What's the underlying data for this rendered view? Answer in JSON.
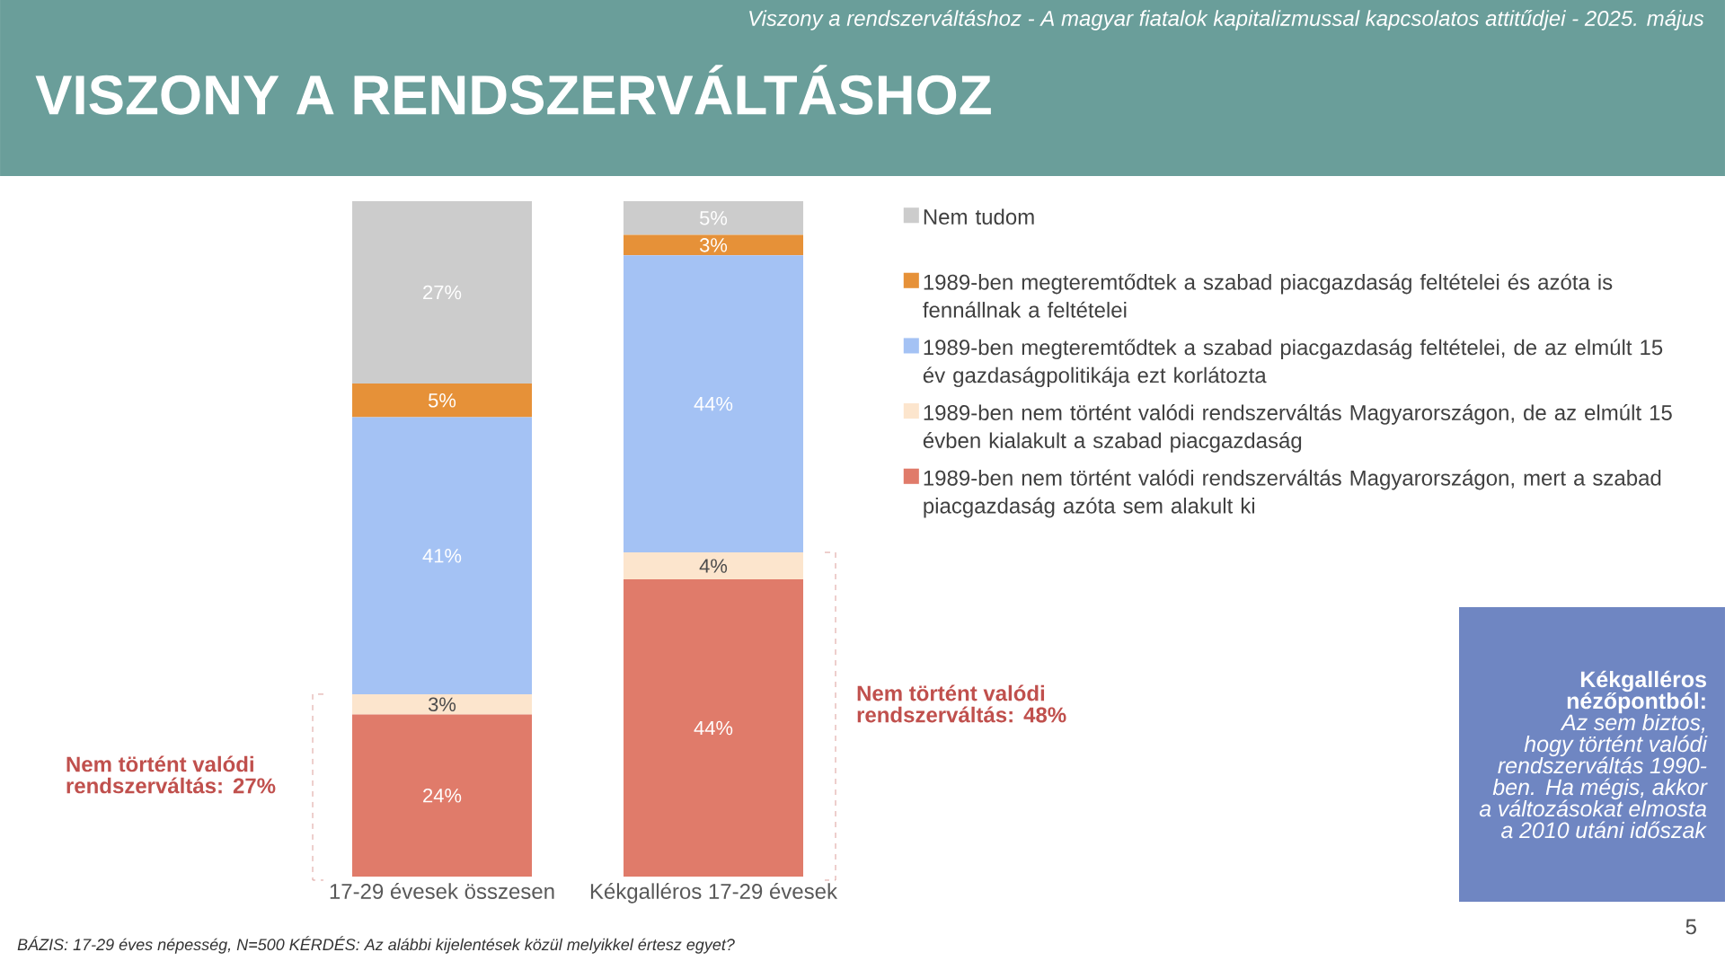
{
  "chart_data": {
    "type": "bar",
    "stacked": true,
    "title": "VISZONY A RENDSZERVÁLTÁSHOZ",
    "subtitle": "Viszony a rendszerváltáshoz - A magyar fiatalok kapitalizmussal kapcsolatos attitűdjei - 2025. május",
    "categories": [
      "17-29 évesek összesen",
      "Kékgalléros 17-29 évesek"
    ],
    "series": [
      {
        "name": "1989-ben nem történt valódi rendszerváltás Magyarországon, mert a szabad piacgazdaság azóta sem alakult ki",
        "color": "#e07b6a",
        "values": [
          24,
          44
        ],
        "value_labels": [
          "24%",
          "44%"
        ]
      },
      {
        "name": "1989-ben nem történt valódi rendszerváltás Magyarországon, de az elmúlt 15 évben kialakult a szabad piacgazdaság",
        "color": "#fce5cd",
        "values": [
          3,
          4
        ],
        "value_labels": [
          "3%",
          "4%"
        ]
      },
      {
        "name": "1989-ben megteremtődtek a szabad piacgazdaság feltételei, de az elmúlt 15 év gazdaságpolitikája ezt korlátozta",
        "color": "#a4c2f4",
        "values": [
          41,
          44
        ],
        "value_labels": [
          "41%",
          "44%"
        ]
      },
      {
        "name": "1989-ben megteremtődtek a szabad piacgazdaság feltételei és azóta is fennállnak a feltételei",
        "color": "#e69138",
        "values": [
          5,
          3
        ],
        "value_labels": [
          "5%",
          "3%"
        ]
      },
      {
        "name": "Nem tudom",
        "color": "#cccccc",
        "values": [
          27,
          5
        ],
        "value_labels": [
          "27%",
          "5%"
        ]
      }
    ],
    "legend": "right",
    "annotations": [
      "Nem történt valódi rendszerváltás: 27%",
      "Nem történt valódi rendszerváltás: 48%",
      "**Kékgalléros nézőpontból:** *Az sem biztos, hogy történt valódi rendszerváltás 1990-ben. Ha mégis, akkor a változásokat elmosta a 2010 utáni időszak*",
      "BÁZIS: 17-29 éves népesség, N=500  KÉRDÉS: Az alábbi kijelentések közül melyikkel értesz egyet?",
      "5"
    ]
  }
}
